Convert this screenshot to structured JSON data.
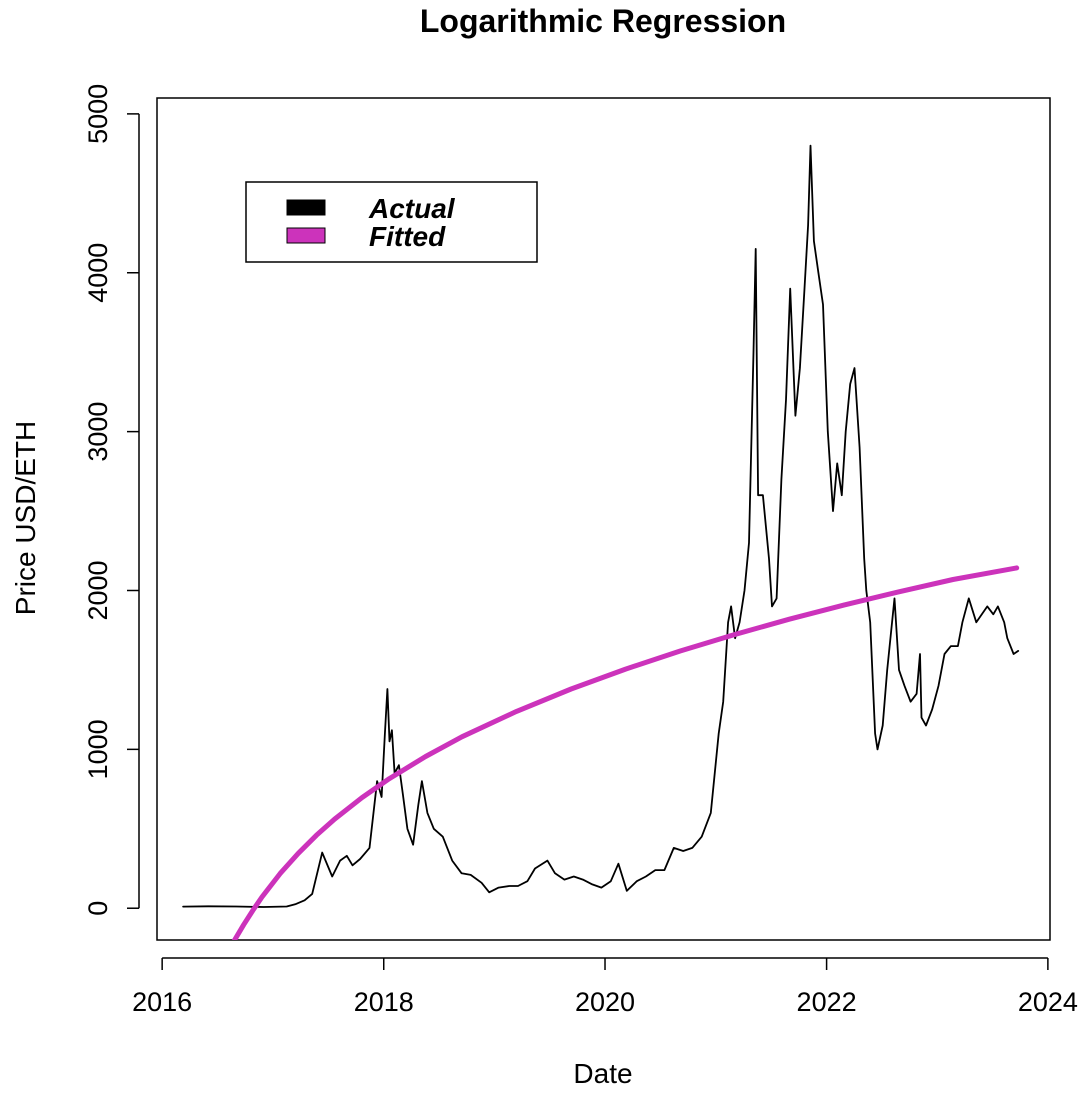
{
  "chart_data": {
    "type": "line",
    "title": "Logarithmic Regression",
    "xlabel": "Date",
    "ylabel": "Price USD/ETH",
    "xlim": [
      "2015-12-15",
      "2024-01-08"
    ],
    "ylim": [
      -200,
      5100
    ],
    "x_ticks": [
      "2016",
      "2018",
      "2020",
      "2022",
      "2024"
    ],
    "y_ticks": [
      "0",
      "1000",
      "2000",
      "3000",
      "4000",
      "5000"
    ],
    "grid": false,
    "legend": {
      "position": "top-left",
      "entries": [
        {
          "label": "Actual",
          "color": "#000000"
        },
        {
          "label": "Fitted",
          "color": "#cc33bb"
        }
      ]
    },
    "series": [
      {
        "name": "Actual",
        "color": "#000000",
        "x": [
          "2016-03-10",
          "2016-06-01",
          "2016-09-01",
          "2016-12-01",
          "2017-02-15",
          "2017-03-15",
          "2017-04-15",
          "2017-05-10",
          "2017-06-12",
          "2017-07-15",
          "2017-08-10",
          "2017-09-01",
          "2017-09-20",
          "2017-10-15",
          "2017-11-15",
          "2017-12-10",
          "2017-12-25",
          "2018-01-05",
          "2018-01-13",
          "2018-01-20",
          "2018-01-28",
          "2018-02-06",
          "2018-02-20",
          "2018-03-05",
          "2018-03-20",
          "2018-04-08",
          "2018-04-25",
          "2018-05-07",
          "2018-05-25",
          "2018-06-15",
          "2018-07-15",
          "2018-08-15",
          "2018-09-15",
          "2018-10-15",
          "2018-11-20",
          "2018-12-15",
          "2019-01-15",
          "2019-02-20",
          "2019-03-20",
          "2019-04-20",
          "2019-05-15",
          "2019-06-25",
          "2019-07-20",
          "2019-08-20",
          "2019-09-20",
          "2019-10-20",
          "2019-11-20",
          "2019-12-20",
          "2020-01-20",
          "2020-02-14",
          "2020-03-13",
          "2020-04-15",
          "2020-05-15",
          "2020-06-15",
          "2020-07-15",
          "2020-08-15",
          "2020-09-15",
          "2020-10-15",
          "2020-11-15",
          "2020-12-15",
          "2021-01-10",
          "2021-01-25",
          "2021-02-10",
          "2021-02-20",
          "2021-03-05",
          "2021-03-20",
          "2021-04-05",
          "2021-04-20",
          "2021-05-05",
          "2021-05-12",
          "2021-05-20",
          "2021-06-05",
          "2021-06-25",
          "2021-07-05",
          "2021-07-20",
          "2021-08-05",
          "2021-08-20",
          "2021-09-03",
          "2021-09-20",
          "2021-10-05",
          "2021-10-20",
          "2021-11-01",
          "2021-11-09",
          "2021-11-20",
          "2021-12-05",
          "2021-12-20",
          "2022-01-05",
          "2022-01-22",
          "2022-02-05",
          "2022-02-20",
          "2022-03-05",
          "2022-03-20",
          "2022-04-03",
          "2022-04-20",
          "2022-05-05",
          "2022-05-12",
          "2022-05-25",
          "2022-06-10",
          "2022-06-18",
          "2022-07-05",
          "2022-07-20",
          "2022-08-13",
          "2022-08-28",
          "2022-09-15",
          "2022-10-05",
          "2022-10-25",
          "2022-11-05",
          "2022-11-10",
          "2022-11-25",
          "2022-12-15",
          "2023-01-05",
          "2023-01-25",
          "2023-02-15",
          "2023-03-10",
          "2023-03-25",
          "2023-04-15",
          "2023-05-10",
          "2023-06-15",
          "2023-07-05",
          "2023-07-20",
          "2023-08-10",
          "2023-08-20",
          "2023-09-10",
          "2023-09-25"
        ],
        "y": [
          10,
          12,
          11,
          8,
          11,
          25,
          50,
          90,
          350,
          200,
          300,
          330,
          270,
          310,
          380,
          800,
          700,
          1100,
          1380,
          1050,
          1120,
          850,
          900,
          720,
          500,
          400,
          650,
          800,
          600,
          500,
          450,
          300,
          220,
          210,
          160,
          100,
          130,
          140,
          140,
          170,
          250,
          300,
          220,
          180,
          200,
          180,
          150,
          130,
          170,
          280,
          110,
          170,
          200,
          240,
          240,
          380,
          360,
          380,
          450,
          600,
          1100,
          1300,
          1800,
          1900,
          1700,
          1800,
          2000,
          2300,
          3500,
          4150,
          2600,
          2600,
          2200,
          1900,
          1950,
          2700,
          3200,
          3900,
          3100,
          3400,
          3900,
          4300,
          4800,
          4200,
          4000,
          3800,
          3000,
          2500,
          2800,
          2600,
          3000,
          3300,
          3400,
          2900,
          2200,
          2000,
          1800,
          1100,
          1000,
          1150,
          1500,
          1950,
          1500,
          1400,
          1300,
          1350,
          1600,
          1200,
          1150,
          1250,
          1400,
          1600,
          1650,
          1650,
          1800,
          1950,
          1800,
          1900,
          1850,
          1900,
          1800,
          1700,
          1600,
          1620
        ]
      },
      {
        "name": "Fitted",
        "color": "#cc33bb",
        "x": [
          "2016-08-27",
          "2016-09-26",
          "2016-10-26",
          "2016-11-25",
          "2017-01-24",
          "2017-03-25",
          "2017-05-24",
          "2017-07-23",
          "2017-10-21",
          "2018-01-19",
          "2018-05-19",
          "2018-09-16",
          "2019-03-15",
          "2019-09-11",
          "2020-03-09",
          "2020-09-05",
          "2021-03-04",
          "2021-08-31",
          "2022-02-27",
          "2022-08-26",
          "2023-02-22",
          "2023-09-20"
        ],
        "y": [
          -200,
          -104,
          -14,
          70,
          218,
          346,
          459,
          561,
          696,
          815,
          955,
          1079,
          1239,
          1380,
          1505,
          1619,
          1723,
          1819,
          1908,
          1991,
          2069,
          2142
        ]
      }
    ]
  }
}
